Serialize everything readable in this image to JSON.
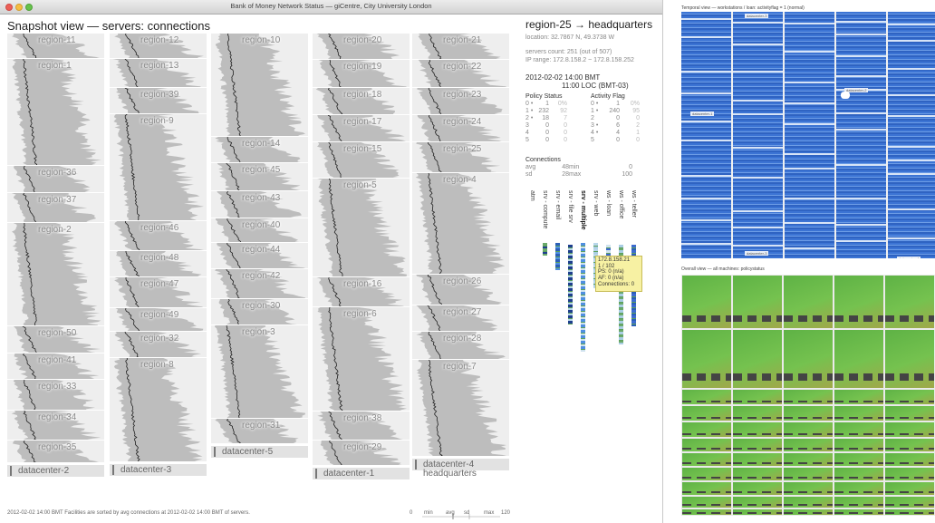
{
  "window": {
    "title": "Bank of Money Network Status — giCentre, City University London"
  },
  "snapshot": {
    "title": "Snapshot view — servers: connections",
    "columns": [
      {
        "cells": [
          {
            "label": "region-11",
            "h": 28
          },
          {
            "label": "region-1",
            "h": 118
          },
          {
            "label": "region-36",
            "h": 30
          },
          {
            "label": "region-37",
            "h": 33
          },
          {
            "label": "region-2",
            "h": 114
          },
          {
            "label": "region-50",
            "h": 30
          },
          {
            "label": "region-41",
            "h": 29
          },
          {
            "label": "region-33",
            "h": 34
          },
          {
            "label": "region-34",
            "h": 33
          },
          {
            "label": "region-35",
            "h": 25
          }
        ],
        "footer": "datacenter-2"
      },
      {
        "cells": [
          {
            "label": "region-12",
            "h": 28
          },
          {
            "label": "region-13",
            "h": 32
          },
          {
            "label": "region-39",
            "h": 29
          },
          {
            "label": "region-9",
            "h": 118
          },
          {
            "label": "region-46",
            "h": 33
          },
          {
            "label": "region-48",
            "h": 29
          },
          {
            "label": "region-47",
            "h": 34
          },
          {
            "label": "region-49",
            "h": 26
          },
          {
            "label": "region-32",
            "h": 29
          },
          {
            "label": "region-8",
            "h": 115
          }
        ],
        "footer": "datacenter-3"
      },
      {
        "cells": [
          {
            "label": "region-10",
            "h": 114
          },
          {
            "label": "region-14",
            "h": 29
          },
          {
            "label": "region-45",
            "h": 31
          },
          {
            "label": "region-43",
            "h": 30
          },
          {
            "label": "region-40",
            "h": 27
          },
          {
            "label": "region-44",
            "h": 29
          },
          {
            "label": "region-42",
            "h": 33
          },
          {
            "label": "region-30",
            "h": 29
          },
          {
            "label": "region-3",
            "h": 103
          },
          {
            "label": "region-31",
            "h": 28
          }
        ],
        "footer": "datacenter-5"
      },
      {
        "cells": [
          {
            "label": "region-20",
            "h": 29
          },
          {
            "label": "region-19",
            "h": 31
          },
          {
            "label": "region-18",
            "h": 30
          },
          {
            "label": "region-17",
            "h": 30
          },
          {
            "label": "region-15",
            "h": 40
          },
          {
            "label": "region-5",
            "h": 109
          },
          {
            "label": "region-16",
            "h": 33
          },
          {
            "label": "region-6",
            "h": 115
          },
          {
            "label": "region-38",
            "h": 32
          },
          {
            "label": "region-29",
            "h": 28
          }
        ],
        "footer": "datacenter-1"
      },
      {
        "cells": [
          {
            "label": "region-21",
            "h": 29
          },
          {
            "label": "region-22",
            "h": 31
          },
          {
            "label": "region-23",
            "h": 30
          },
          {
            "label": "region-24",
            "h": 30
          },
          {
            "label": "region-25",
            "h": 34
          },
          {
            "label": "region-4",
            "h": 112
          },
          {
            "label": "region-26",
            "h": 34
          },
          {
            "label": "region-27",
            "h": 29
          },
          {
            "label": "region-28",
            "h": 31
          },
          {
            "label": "region-7",
            "h": 107
          }
        ],
        "footer": "datacenter-4",
        "footer2": "headquarters"
      }
    ],
    "status": "2012-02-02 14:00 BMT   Facilities are sorted by avg connections at 2012-02-02 14:00 BMT of servers.",
    "scale": {
      "min": "0",
      "max": "120",
      "labels": [
        "min",
        "avg",
        "sd",
        "max"
      ]
    }
  },
  "detail": {
    "title": "region-25 → headquarters",
    "location": "location:   32.7867 N,  49.3738 W",
    "servers_count": "servers count: 251 (out of 507)",
    "ip_range": "IP range: 172.8.158.2 ~ 172.8.158.252",
    "datetime1": "2012-02-02 14:00 BMT",
    "datetime2": "11:00 LOC (BMT-03)",
    "policy": {
      "header": "Policy Status",
      "rows": [
        [
          "0 •",
          "1",
          "0%"
        ],
        [
          "1 •",
          "232",
          "92"
        ],
        [
          "2 •",
          "18",
          "7"
        ],
        [
          "3",
          "0",
          "0"
        ],
        [
          "4",
          "0",
          "0"
        ],
        [
          "5",
          "0",
          "0"
        ]
      ]
    },
    "activity": {
      "header": "Activity Flag",
      "rows": [
        [
          "0 •",
          "1",
          "0%"
        ],
        [
          "1 •",
          "240",
          "95"
        ],
        [
          "2",
          "0",
          "0"
        ],
        [
          "3 •",
          "6",
          "2"
        ],
        [
          "4 •",
          "4",
          "1"
        ],
        [
          "5",
          "0",
          "0"
        ]
      ]
    },
    "connections": {
      "header": "Connections",
      "rows": [
        [
          "avg",
          "48",
          "min",
          "0"
        ],
        [
          "sd",
          "28",
          "max",
          "100"
        ]
      ]
    },
    "types": [
      "atm",
      "srv - compute",
      "srv - email",
      "srv - file srv",
      "srv - multiple",
      "srv - web",
      "ws - loan",
      "ws - office",
      "ws - teller"
    ],
    "tooltip": [
      "172.8.158.21",
      "1 / 102",
      "PS: 0 (n/a)",
      "AF: 0 (n/a)",
      "Connections: 0"
    ]
  },
  "temporal": {
    "header": "Temporal view — workstations / loan: activityflag = 1 (normal)",
    "labels": [
      "datacenter-3",
      "datacenter-1",
      "datacenter-2",
      "datacenter-3",
      "datacenter-4"
    ]
  },
  "overall": {
    "header": "Overall view — all machines: policystatus"
  },
  "colors": {
    "cell_bg": "#eeeeee",
    "dist_fill": "#bdbdbd",
    "tooltip_bg": "#f7f1a3",
    "temporal_blue": "#4a7fd6",
    "overall_green": "#6fbd4a"
  }
}
